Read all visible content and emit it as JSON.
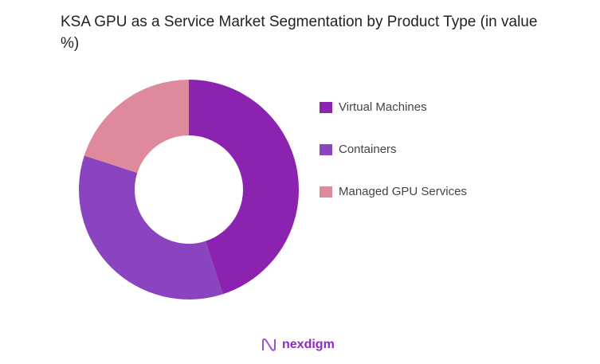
{
  "chart_data": {
    "type": "pie",
    "donut": true,
    "title": "KSA GPU as a Service Market Segmentation by Product Type (in value %)",
    "categories": [
      "Virtual Machines",
      "Containers",
      "Managed GPU Services"
    ],
    "values": [
      45,
      35,
      20
    ],
    "colors": [
      "#8b22b0",
      "#8a44c0",
      "#de8a9c"
    ],
    "legend": "right"
  },
  "logo": {
    "text": "nexdigm"
  }
}
